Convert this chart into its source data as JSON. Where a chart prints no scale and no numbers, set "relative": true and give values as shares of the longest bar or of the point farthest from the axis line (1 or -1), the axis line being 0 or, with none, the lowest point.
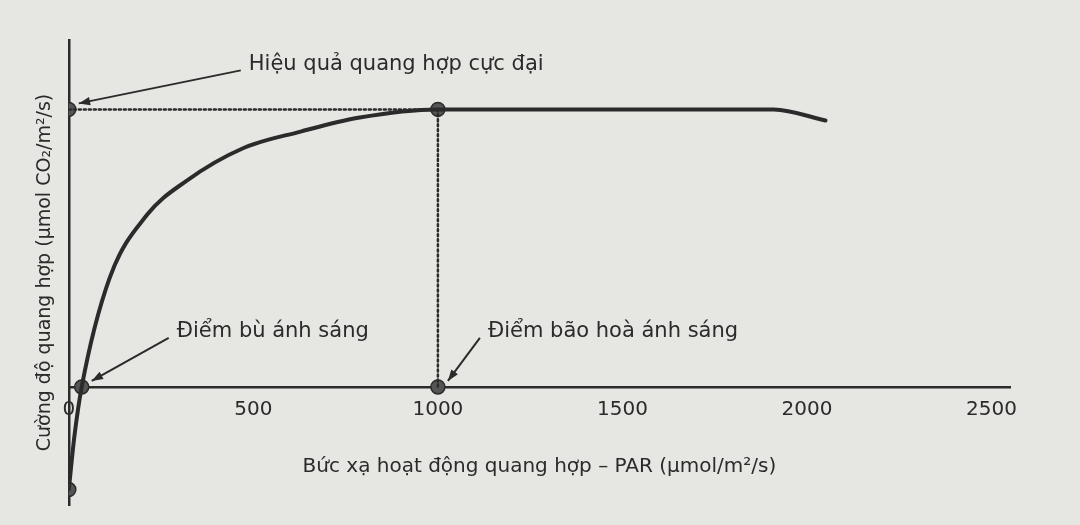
{
  "chart_data": {
    "type": "line",
    "relative": true,
    "xlabel": "Bức xạ hoạt động quang hợp – PAR (µmol/m²/s)",
    "ylabel": "Cường độ quang hợp (µmol CO₂/m²/s)",
    "xlim": [
      0,
      2550
    ],
    "xticks": [
      0,
      500,
      1000,
      1500,
      2000,
      2500
    ],
    "grid": false,
    "legend": false,
    "series": [
      {
        "type": "line",
        "color": "#2b2b2b",
        "marker": "none",
        "line_style": "solid",
        "x": [
          0,
          15,
          35,
          110,
          212,
          316,
          472,
          628,
          784,
          1000,
          1500,
          1910,
          2050
        ],
        "values": [
          -0.37,
          -0.18,
          0,
          0.39,
          0.62,
          0.74,
          0.86,
          0.92,
          0.97,
          1,
          1,
          1,
          0.96
        ]
      },
      {
        "type": "line",
        "color": "#2b2b2b",
        "marker": "none",
        "line_style": "dotted",
        "x": [
          0,
          1000
        ],
        "values": [
          1,
          1
        ]
      },
      {
        "type": "line",
        "color": "#2b2b2b",
        "marker": "none",
        "line_style": "dotted",
        "x": [
          1000,
          1000
        ],
        "values": [
          1,
          0
        ]
      },
      {
        "type": "scatter",
        "color": "#555555",
        "marker": "circle",
        "x": [
          0,
          1000,
          1000,
          35,
          0
        ],
        "values": [
          1,
          1,
          0,
          0,
          -0.37
        ]
      }
    ],
    "annotations": [
      "Hiệu quả quang hợp cực đại",
      "Điểm bù ánh sáng",
      "Điểm bão hoà ánh sáng"
    ]
  }
}
